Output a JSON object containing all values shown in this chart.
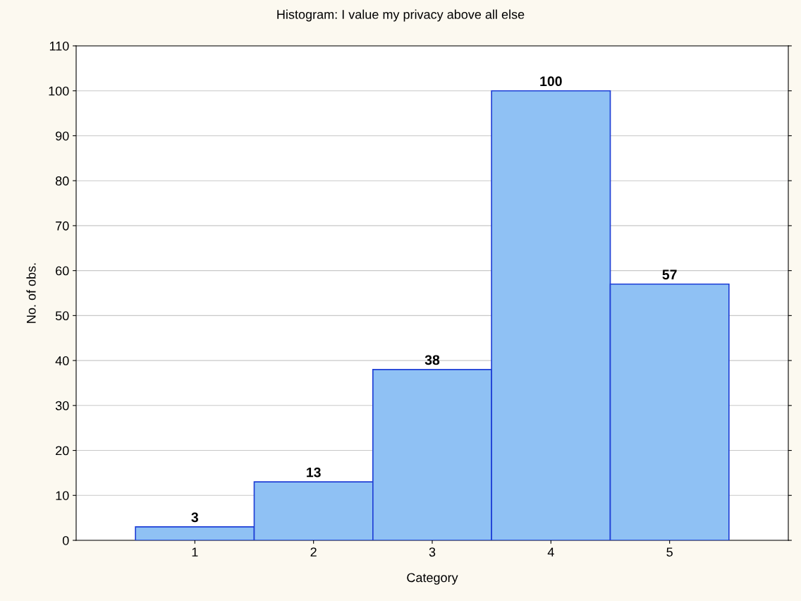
{
  "chart_data": {
    "type": "histogram",
    "title": "Histogram: I value my privacy above all else",
    "xlabel": "Category",
    "ylabel": "No. of obs.",
    "bins": [
      0.5,
      1.5,
      2.5,
      3.5,
      4.5,
      5.5
    ],
    "values": [
      3,
      13,
      38,
      100,
      57
    ],
    "color": "#8fc1f4",
    "data_labels": true,
    "xlim": [
      0,
      6
    ],
    "xticks": [
      1,
      2,
      3,
      4,
      5
    ],
    "ylim": [
      0,
      110
    ],
    "yticks": [
      0,
      10,
      20,
      30,
      40,
      50,
      60,
      70,
      80,
      90,
      100,
      110
    ],
    "grid": "y"
  }
}
